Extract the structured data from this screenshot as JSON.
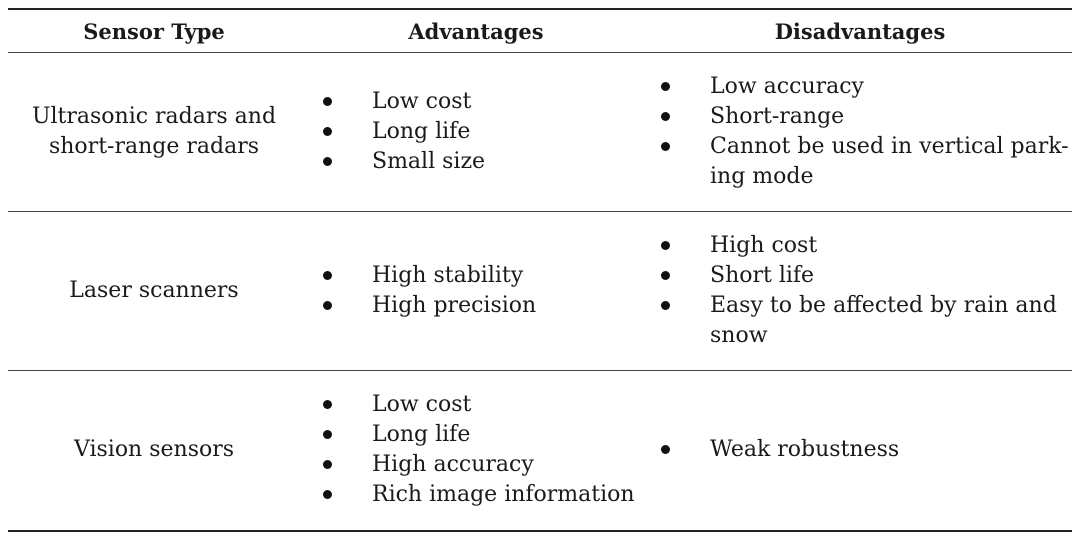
{
  "table": {
    "headers": {
      "sensor_type": "Sensor Type",
      "advantages": "Advantages",
      "disadvantages": "Disadvantages"
    },
    "rows": [
      {
        "type_lines": [
          "Ultrasonic radars and",
          "short-range radars"
        ],
        "advantages": [
          "Low cost",
          "Long life",
          "Small size"
        ],
        "disadvantages": [
          "Low accuracy",
          "Short-range",
          "Cannot be used in vertical park-",
          "ing mode"
        ]
      },
      {
        "type_lines": [
          "Laser scanners"
        ],
        "advantages": [
          "High stability",
          "High precision"
        ],
        "disadvantages": [
          "High cost",
          "Short life",
          "Easy to be affected by rain and",
          "snow"
        ]
      },
      {
        "type_lines": [
          "Vision sensors"
        ],
        "advantages": [
          "Low cost",
          "Long life",
          "High accuracy",
          "Rich image information"
        ],
        "disadvantages": [
          "Weak robustness"
        ]
      }
    ]
  }
}
